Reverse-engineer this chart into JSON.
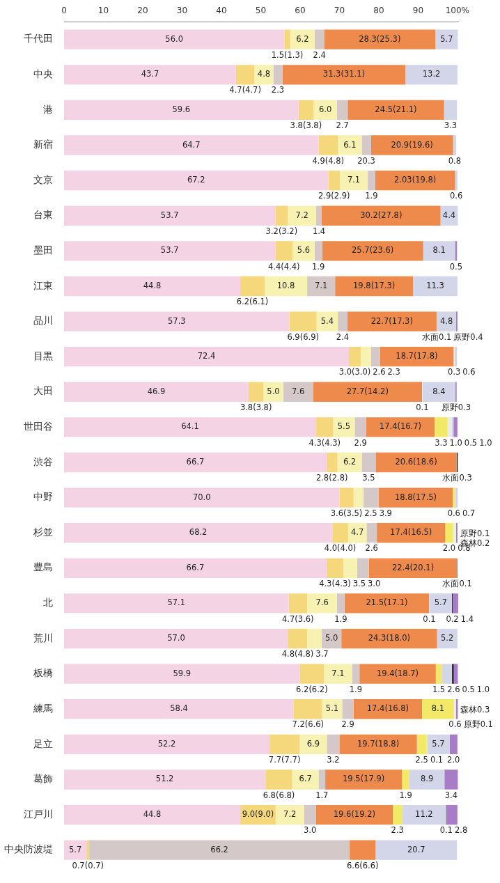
{
  "chart_data": {
    "type": "bar",
    "orientation": "horizontal",
    "stacked": true,
    "categories": [
      "千代田",
      "中央",
      "港",
      "新宿",
      "文京",
      "台東",
      "墨田",
      "江東",
      "品川",
      "目黒",
      "大田",
      "世田谷",
      "渋谷",
      "中野",
      "杉並",
      "豊島",
      "北",
      "荒川",
      "板橋",
      "練馬",
      "足立",
      "葛飾",
      "江戸川",
      "中央防波堤"
    ],
    "annotations": [
      {
        "text": "20.3",
        "x": 78.0,
        "y": "新宿"
      },
      {
        "text": "2.03(19.8)",
        "x": 99.4,
        "y": "文京"
      }
    ],
    "xlim": [
      0,
      100.2
    ],
    "xticks": [
      0,
      10,
      20,
      30,
      40,
      50,
      60,
      70,
      80,
      90,
      {
        "value": 100,
        "label": "100%"
      }
    ],
    "series": [
      {
        "color": "#f4d4e4",
        "values": [
          56.0,
          43.7,
          59.6,
          64.7,
          67.2,
          53.7,
          53.7,
          44.8,
          57.3,
          72.4,
          46.9,
          64.1,
          66.7,
          70.0,
          68.2,
          66.7,
          57.1,
          57.0,
          59.9,
          58.4,
          52.2,
          51.2,
          44.8,
          5.7
        ],
        "value_labels": [
          "56.0",
          "43.7",
          "59.6",
          "64.7",
          "67.2",
          "53.7",
          "53.7",
          "44.8",
          "57.3",
          "72.4",
          "46.9",
          "64.1",
          "66.7",
          "70.0",
          "68.2",
          "66.7",
          "57.1",
          "57.0",
          "59.9",
          "58.4",
          "52.2",
          "51.2",
          "44.8",
          "5.7"
        ]
      },
      {
        "color": "#f6d87c",
        "values": [
          1.5,
          4.7,
          3.8,
          4.9,
          2.9,
          3.2,
          4.4,
          6.2,
          6.9,
          3.0,
          3.8,
          4.3,
          2.8,
          3.6,
          4.0,
          4.3,
          4.7,
          4.8,
          6.2,
          7.2,
          7.7,
          6.8,
          9.0,
          0.7
        ],
        "value_labels": [
          "1.5(1.3)",
          "4.7(4.7)",
          "3.8(3.8)",
          "4.9(4.8)",
          "2.9(2.9)",
          "3.2(3.2)",
          "4.4(4.4)",
          "6.2(6.1)",
          "6.9(6.9)",
          "3.0(3.0)",
          "3.8(3.8)",
          "4.3(4.3)",
          "2.8(2.8)",
          "3.6(3.5)",
          "4.0(4.0)",
          "4.3(4.3)",
          "4.7(3.6)",
          "4.8(4.8)",
          "6.2(6.2)",
          "7.2(6.6)",
          "7.7(7.7)",
          "6.8(6.8)",
          "9.0(9.0)",
          "0.7(0.7)"
        ]
      },
      {
        "color": "#f8f2b2",
        "values": [
          6.2,
          4.8,
          6.0,
          6.1,
          7.1,
          7.2,
          5.6,
          10.8,
          5.4,
          2.6,
          5.0,
          5.5,
          6.2,
          2.5,
          4.7,
          3.5,
          7.6,
          3.7,
          7.1,
          5.1,
          6.9,
          6.7,
          7.2,
          null
        ],
        "value_labels": [
          "6.2",
          "4.8",
          "6.0",
          "6.1",
          "7.1",
          "7.2",
          "5.6",
          "10.8",
          "5.4",
          "2.6",
          "5.0",
          "5.5",
          "6.2",
          "2.5",
          "4.7",
          "3.5",
          "7.6",
          "3.7",
          "7.1",
          "5.1",
          "6.9",
          "6.7",
          "7.2",
          null
        ]
      },
      {
        "color": "#d4c8c8",
        "values": [
          2.4,
          2.3,
          2.7,
          2.3,
          1.9,
          1.4,
          1.9,
          7.1,
          2.4,
          2.3,
          7.6,
          2.9,
          3.5,
          3.9,
          2.6,
          3.0,
          1.9,
          5.0,
          1.9,
          2.9,
          3.2,
          1.7,
          3.0,
          66.2
        ],
        "value_labels": [
          "2.4",
          "2.3",
          "2.7",
          null,
          "1.9",
          "1.4",
          "1.9",
          "7.1",
          "2.4",
          "2.3",
          "7.6",
          "2.9",
          "3.5",
          "3.9",
          "2.6",
          "3.0",
          "1.9",
          "5.0",
          "1.9",
          "2.9",
          "3.2",
          "1.7",
          "3.0",
          "66.2"
        ]
      },
      {
        "color": "#ee8a4c",
        "values": [
          28.3,
          31.3,
          24.5,
          20.9,
          20.3,
          30.2,
          25.7,
          19.8,
          22.7,
          18.7,
          27.7,
          17.4,
          20.6,
          18.8,
          17.4,
          22.4,
          21.5,
          24.3,
          19.4,
          17.4,
          19.7,
          19.5,
          19.6,
          6.6
        ],
        "value_labels": [
          "28.3(25.3)",
          "31.3(31.1)",
          "24.5(21.1)",
          "20.9(19.6)",
          null,
          "30.2(27.8)",
          "25.7(23.6)",
          "19.8(17.3)",
          "22.7(17.3)",
          "18.7(17.8)",
          "27.7(14.2)",
          "17.4(16.7)",
          "20.6(18.6)",
          "18.8(17.5)",
          "17.4(16.5)",
          "22.4(20.1)",
          "21.5(17.1)",
          "24.3(18.0)",
          "19.4(18.7)",
          "17.4(16.8)",
          "19.7(18.8)",
          "19.5(17.9)",
          "19.6(19.2)",
          "6.6(6.6)"
        ]
      },
      {
        "color": "#f2ea66",
        "values": [
          null,
          null,
          null,
          null,
          null,
          null,
          null,
          null,
          null,
          null,
          null,
          3.3,
          null,
          0.6,
          2.0,
          null,
          null,
          null,
          1.5,
          8.1,
          2.5,
          1.9,
          2.3,
          null
        ],
        "value_labels": [
          null,
          null,
          null,
          null,
          null,
          null,
          null,
          null,
          null,
          null,
          null,
          "3.3",
          null,
          "0.6",
          "2.0",
          null,
          null,
          null,
          "1.5",
          "8.1",
          "2.5",
          "1.9",
          "2.3",
          null
        ]
      },
      {
        "color": "#ebebeb",
        "values": [
          null,
          null,
          null,
          null,
          null,
          null,
          null,
          null,
          0.1,
          0.3,
          0.1,
          1.0,
          null,
          null,
          0.8,
          null,
          0.1,
          null,
          null,
          0.6,
          0.1,
          null,
          null,
          null
        ],
        "value_labels": [
          null,
          null,
          null,
          null,
          null,
          null,
          null,
          null,
          "水面0.1",
          "0.3",
          "0.1",
          "1.0",
          null,
          null,
          "0.8",
          null,
          "0.1",
          null,
          null,
          "0.6",
          "0.1",
          null,
          null,
          null
        ]
      },
      {
        "color": "#d2d6e8",
        "values": [
          5.7,
          13.2,
          3.3,
          0.8,
          0.6,
          4.4,
          8.1,
          11.3,
          4.8,
          0.6,
          8.4,
          0.5,
          null,
          0.7,
          null,
          null,
          5.7,
          5.2,
          2.6,
          null,
          5.7,
          8.9,
          11.2,
          20.7
        ],
        "value_labels": [
          "5.7",
          "13.2",
          "3.3",
          "0.8",
          "0.6",
          "4.4",
          "8.1",
          "11.3",
          "4.8",
          "0.6",
          "8.4",
          "0.5",
          null,
          "0.7",
          null,
          null,
          "5.7",
          "5.2",
          "2.6",
          null,
          "5.7",
          "8.9",
          "11.2",
          "20.7"
        ]
      },
      {
        "color": "#333333",
        "values": [
          null,
          null,
          null,
          null,
          null,
          null,
          null,
          null,
          null,
          null,
          null,
          null,
          0.3,
          null,
          0.1,
          0.1,
          0.2,
          null,
          0.5,
          0.1,
          null,
          null,
          0.1,
          null
        ],
        "value_labels": [
          null,
          null,
          null,
          null,
          null,
          null,
          null,
          null,
          null,
          null,
          null,
          null,
          "水面0.3",
          null,
          "原野0.1",
          "水面0.1",
          "0.2",
          null,
          "0.5",
          "原野0.1",
          null,
          null,
          "0.1",
          null
        ]
      },
      {
        "color": "#a87cc6",
        "values": [
          null,
          null,
          null,
          null,
          null,
          null,
          0.5,
          null,
          0.4,
          null,
          0.3,
          1.0,
          null,
          null,
          0.2,
          null,
          1.4,
          null,
          1.0,
          0.3,
          2.0,
          3.4,
          2.8,
          null
        ],
        "value_labels": [
          null,
          null,
          null,
          null,
          null,
          null,
          "0.5",
          null,
          "原野0.4",
          null,
          "原野0.3",
          "1.0",
          null,
          null,
          "森林0.2",
          null,
          "1.4",
          null,
          "1.0",
          "森林0.3",
          "2.0",
          "3.4",
          "2.8",
          null
        ]
      }
    ]
  }
}
